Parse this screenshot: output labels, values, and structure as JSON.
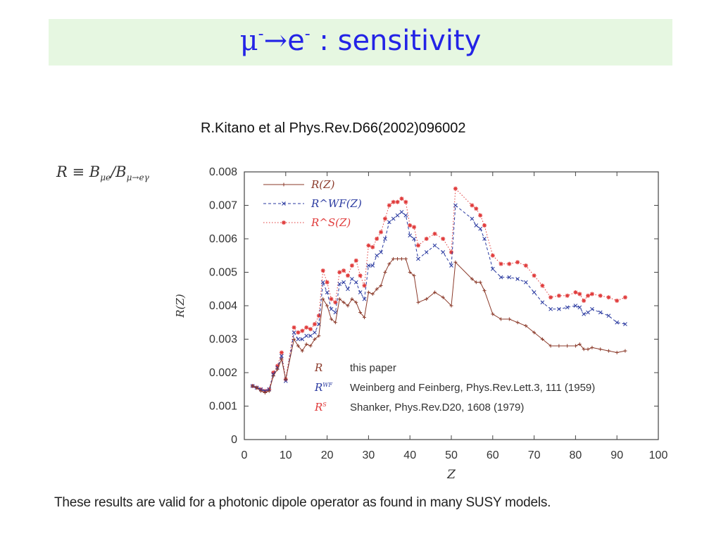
{
  "slide": {
    "title_mu": "μ",
    "title_arrow": "→",
    "title_e": "e",
    "title_sup": "-",
    "title_rest": " : sensitivity",
    "citation": "R.Kitano et al Phys.Rev.D66(2002)096002",
    "definition_lhs": "R ≡ B",
    "definition_sub1": "μe",
    "definition_mid": "/B",
    "definition_sub2": "μ→eγ",
    "footer": "These results are valid for a photonic dipole operator as found in many SUSY models."
  },
  "chart_data": {
    "type": "line",
    "xlabel": "Z",
    "ylabel": "R(Z)",
    "xlim": [
      0,
      100
    ],
    "ylim": [
      0,
      0.008
    ],
    "xticks": [
      0,
      10,
      20,
      30,
      40,
      50,
      60,
      70,
      80,
      90,
      100
    ],
    "yticks": [
      "0",
      "0.001",
      "0.002",
      "0.003",
      "0.004",
      "0.005",
      "0.006",
      "0.007",
      "0.008"
    ],
    "legend_top": [
      {
        "label": "R(Z)",
        "color": "#8b3a2a"
      },
      {
        "label": "R^WF(Z)",
        "color": "#2a3aa0"
      },
      {
        "label": "R^S(Z)",
        "color": "#e03a3a"
      }
    ],
    "legend_bottom": [
      {
        "sym": "R",
        "sup": "",
        "text": "this paper",
        "color": "#8b3a2a"
      },
      {
        "sym": "R",
        "sup": "WF",
        "text": "Weinberg and Feinberg, Phys.Rev.Lett.3, 111 (1959)",
        "color": "#2a3aa0"
      },
      {
        "sym": "R",
        "sup": "S",
        "text": "Shanker, Phys.Rev.D20, 1608 (1979)",
        "color": "#e03a3a"
      }
    ],
    "series": [
      {
        "name": "R(Z)",
        "color": "#8b3a2a",
        "marker": "plus",
        "dash": "",
        "x": [
          2,
          3,
          4,
          5,
          6,
          7,
          8,
          9,
          10,
          12,
          13,
          14,
          15,
          16,
          17,
          18,
          19,
          20,
          21,
          22,
          23,
          24,
          25,
          26,
          27,
          28,
          29,
          30,
          31,
          32,
          33,
          34,
          35,
          36,
          37,
          38,
          39,
          40,
          41,
          42,
          44,
          46,
          48,
          50,
          51,
          55,
          56,
          57,
          58,
          60,
          62,
          64,
          66,
          68,
          70,
          72,
          74,
          76,
          78,
          80,
          81,
          82,
          83,
          84,
          86,
          88,
          90,
          92
        ],
        "y": [
          0.0016,
          0.00155,
          0.00145,
          0.0014,
          0.00145,
          0.0019,
          0.0021,
          0.0024,
          0.0018,
          0.003,
          0.0028,
          0.00265,
          0.00285,
          0.0028,
          0.003,
          0.0031,
          0.0042,
          0.004,
          0.0036,
          0.0035,
          0.0042,
          0.0041,
          0.004,
          0.0042,
          0.0041,
          0.0038,
          0.00365,
          0.0044,
          0.00435,
          0.0045,
          0.0046,
          0.005,
          0.00525,
          0.0054,
          0.0054,
          0.0054,
          0.0054,
          0.005,
          0.0049,
          0.0041,
          0.0042,
          0.0044,
          0.00425,
          0.004,
          0.0053,
          0.0048,
          0.0047,
          0.0047,
          0.00445,
          0.00375,
          0.0036,
          0.0036,
          0.0035,
          0.0034,
          0.0032,
          0.003,
          0.0028,
          0.0028,
          0.0028,
          0.0028,
          0.00285,
          0.0027,
          0.0027,
          0.00275,
          0.0027,
          0.00265,
          0.0026,
          0.00265
        ]
      },
      {
        "name": "R^WF(Z)",
        "color": "#2a3aa0",
        "marker": "x",
        "dash": "4,3",
        "x": [
          2,
          3,
          4,
          5,
          6,
          7,
          8,
          9,
          10,
          12,
          13,
          14,
          15,
          16,
          17,
          18,
          19,
          20,
          21,
          22,
          23,
          24,
          25,
          26,
          27,
          28,
          29,
          30,
          31,
          32,
          33,
          34,
          35,
          36,
          37,
          38,
          39,
          40,
          41,
          42,
          44,
          46,
          48,
          50,
          51,
          55,
          56,
          57,
          58,
          60,
          62,
          64,
          66,
          68,
          70,
          72,
          74,
          76,
          78,
          80,
          81,
          82,
          83,
          84,
          86,
          88,
          90,
          92
        ],
        "y": [
          0.0016,
          0.00155,
          0.0015,
          0.00145,
          0.0015,
          0.00195,
          0.00215,
          0.0025,
          0.00175,
          0.0032,
          0.003,
          0.003,
          0.0031,
          0.0031,
          0.0032,
          0.00345,
          0.0047,
          0.0044,
          0.0039,
          0.0038,
          0.00465,
          0.0047,
          0.0045,
          0.0048,
          0.0047,
          0.0044,
          0.0042,
          0.0052,
          0.0052,
          0.0055,
          0.0056,
          0.006,
          0.0065,
          0.0066,
          0.0067,
          0.0068,
          0.0067,
          0.0061,
          0.006,
          0.0054,
          0.0056,
          0.0058,
          0.0056,
          0.0052,
          0.007,
          0.0066,
          0.0064,
          0.0063,
          0.006,
          0.0051,
          0.00485,
          0.00485,
          0.0048,
          0.0047,
          0.0044,
          0.0041,
          0.0039,
          0.0039,
          0.00395,
          0.004,
          0.00395,
          0.00375,
          0.0038,
          0.0039,
          0.0038,
          0.0037,
          0.0035,
          0.00345
        ]
      },
      {
        "name": "R^S(Z)",
        "color": "#e03a3a",
        "marker": "star",
        "dash": "1.5,2.5",
        "x": [
          2,
          3,
          4,
          5,
          6,
          7,
          8,
          9,
          10,
          12,
          13,
          14,
          15,
          16,
          17,
          18,
          19,
          20,
          21,
          22,
          23,
          24,
          25,
          26,
          27,
          28,
          29,
          30,
          31,
          32,
          33,
          34,
          35,
          36,
          37,
          38,
          39,
          40,
          41,
          42,
          44,
          46,
          48,
          50,
          51,
          55,
          56,
          57,
          58,
          60,
          62,
          64,
          66,
          68,
          70,
          72,
          74,
          76,
          78,
          80,
          81,
          82,
          83,
          84,
          86,
          88,
          90,
          92
        ],
        "y": [
          0.0016,
          0.00155,
          0.0015,
          0.00145,
          0.0015,
          0.002,
          0.0022,
          0.0026,
          0.0018,
          0.00335,
          0.0032,
          0.00325,
          0.00335,
          0.0033,
          0.00345,
          0.0037,
          0.00505,
          0.0047,
          0.0042,
          0.0041,
          0.005,
          0.00505,
          0.0049,
          0.0052,
          0.00535,
          0.0049,
          0.0046,
          0.0058,
          0.00575,
          0.006,
          0.0062,
          0.0066,
          0.007,
          0.0071,
          0.0071,
          0.0072,
          0.0071,
          0.0064,
          0.00635,
          0.0058,
          0.006,
          0.00615,
          0.006,
          0.0056,
          0.0075,
          0.007,
          0.0069,
          0.0067,
          0.0064,
          0.0055,
          0.00525,
          0.00525,
          0.0053,
          0.0052,
          0.0049,
          0.0046,
          0.00425,
          0.0043,
          0.0043,
          0.0044,
          0.00435,
          0.00415,
          0.0043,
          0.00435,
          0.0043,
          0.00425,
          0.00415,
          0.00425
        ]
      }
    ]
  }
}
